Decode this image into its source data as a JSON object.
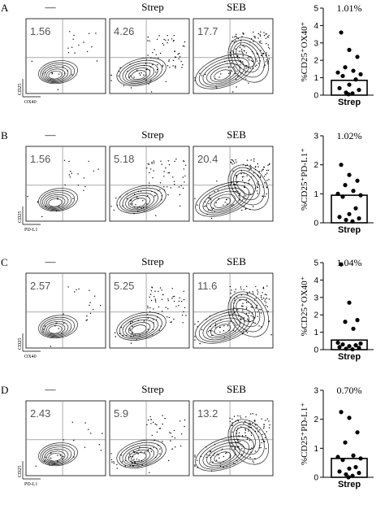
{
  "chart_data": {
    "type": "scatter",
    "panels": [
      {
        "label": "A",
        "flow": {
          "xlabel": "OX40",
          "ylabel": "CD25",
          "plots": [
            {
              "title": "—",
              "value": "1.56"
            },
            {
              "title": "Strep",
              "value": "4.26"
            },
            {
              "title": "SEB",
              "value": "17.7"
            }
          ]
        },
        "dot": {
          "ylabel": "%CD25⁺OX40⁺",
          "mean_label": "1.01%",
          "xlabel": "Strep",
          "ylim": [
            0,
            5
          ],
          "yticks": [
            0,
            1,
            2,
            3,
            4,
            5
          ],
          "bar": 0.85,
          "points": [
            3.6,
            2.6,
            2.2,
            1.6,
            1.4,
            1.3,
            1.2,
            1.1,
            0.9,
            0.6,
            0.4,
            0.3,
            0.15,
            0.1,
            0.05
          ]
        }
      },
      {
        "label": "B",
        "flow": {
          "xlabel": "PD-L1",
          "ylabel": "CD25",
          "plots": [
            {
              "title": "—",
              "value": "1.56"
            },
            {
              "title": "Strep",
              "value": "5.18"
            },
            {
              "title": "SEB",
              "value": "20.4"
            }
          ]
        },
        "dot": {
          "ylabel": "%CD25⁺PD-L1⁺",
          "mean_label": "1.02%",
          "xlabel": "Strep",
          "ylim": [
            0,
            3
          ],
          "yticks": [
            0,
            1,
            2,
            3
          ],
          "bar": 0.95,
          "points": [
            2.0,
            1.65,
            1.45,
            1.3,
            1.1,
            1.0,
            0.95,
            0.9,
            0.5,
            0.3,
            0.2,
            0.15,
            0.1,
            0.05
          ]
        }
      },
      {
        "label": "C",
        "flow": {
          "xlabel": "OX40",
          "ylabel": "CD25",
          "plots": [
            {
              "title": "—",
              "value": "2.57"
            },
            {
              "title": "Strep",
              "value": "5.25"
            },
            {
              "title": "SEB",
              "value": "11.6"
            }
          ]
        },
        "dot": {
          "ylabel": "%CD25⁺OX40⁺",
          "mean_label": "1.04%",
          "xlabel": "Strep",
          "ylim": [
            0,
            5
          ],
          "yticks": [
            0,
            1,
            2,
            3,
            4,
            5
          ],
          "bar": 0.55,
          "points": [
            4.9,
            2.7,
            1.7,
            1.6,
            1.2,
            0.4,
            0.35,
            0.3,
            0.25,
            0.2,
            0.15,
            0.1,
            0.05,
            0.02
          ]
        }
      },
      {
        "label": "D",
        "flow": {
          "xlabel": "PD-L1",
          "ylabel": "CD25",
          "plots": [
            {
              "title": "—",
              "value": "2.43"
            },
            {
              "title": "Strep",
              "value": "5.9"
            },
            {
              "title": "SEB",
              "value": "13.2"
            }
          ]
        },
        "dot": {
          "ylabel": "%CD25⁺PD-L1⁺",
          "mean_label": "0.70%",
          "xlabel": "Strep",
          "ylim": [
            0,
            3
          ],
          "yticks": [
            0,
            1,
            2,
            3
          ],
          "bar": 0.65,
          "points": [
            2.25,
            2.05,
            1.55,
            1.2,
            0.75,
            0.7,
            0.65,
            0.6,
            0.35,
            0.3,
            0.2,
            0.15,
            0.1,
            0.05,
            0.0
          ]
        }
      }
    ]
  }
}
